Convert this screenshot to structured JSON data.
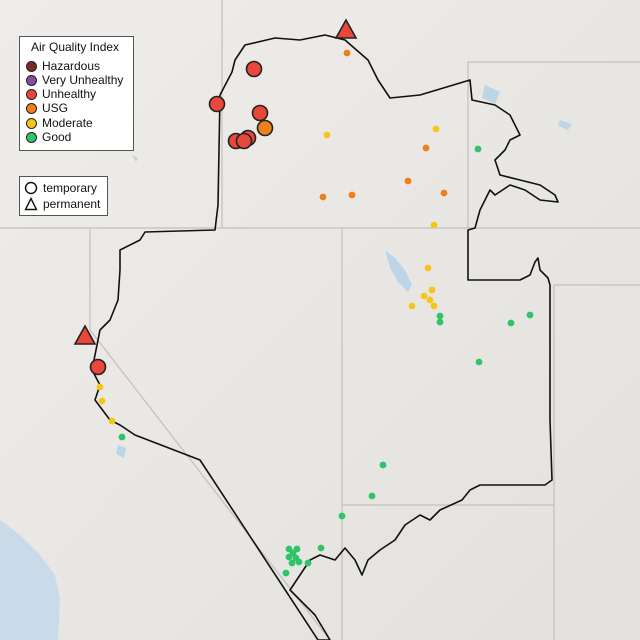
{
  "legend": {
    "title": "Air Quality Index",
    "categories": [
      {
        "label": "Hazardous",
        "color": "#7e2a2a"
      },
      {
        "label": "Very Unhealthy",
        "color": "#8b4aa0"
      },
      {
        "label": "Unhealthy",
        "color": "#e8473a"
      },
      {
        "label": "USG",
        "color": "#ef7f1a"
      },
      {
        "label": "Moderate",
        "color": "#f5c518"
      },
      {
        "label": "Good",
        "color": "#2fc46a"
      }
    ]
  },
  "monitor_types": {
    "temporary": "temporary",
    "permanent": "permanent"
  },
  "colors": {
    "background": "#e9e7e4",
    "water": "#bcd6e8",
    "state_border": "#c9c6c1",
    "district_border": "#111111"
  }
}
